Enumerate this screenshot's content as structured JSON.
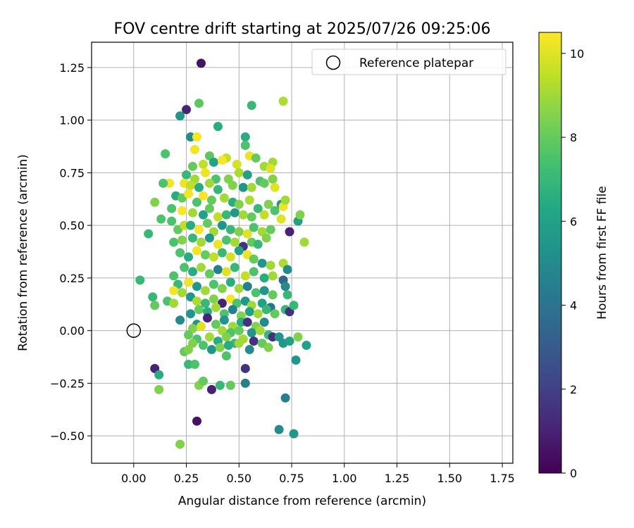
{
  "chart_data": {
    "type": "scatter",
    "title": "FOV centre drift starting at 2025/07/26 09:25:06",
    "xlabel": "Angular distance from reference (arcmin)",
    "ylabel": "Rotation from reference (arcmin)",
    "xlim": [
      -0.2,
      1.8
    ],
    "ylim": [
      -0.63,
      1.37
    ],
    "x_ticks": [
      "0.00",
      "0.25",
      "0.50",
      "0.75",
      "1.00",
      "1.25",
      "1.50",
      "1.75"
    ],
    "x_tick_values": [
      0,
      0.25,
      0.5,
      0.75,
      1.0,
      1.25,
      1.5,
      1.75
    ],
    "y_ticks": [
      "−0.50",
      "−0.25",
      "0.00",
      "0.25",
      "0.50",
      "0.75",
      "1.00",
      "1.25"
    ],
    "y_tick_values": [
      -0.5,
      -0.25,
      0,
      0.25,
      0.5,
      0.75,
      1.0,
      1.25
    ],
    "grid": true,
    "legend": {
      "placement": "upper right",
      "entries": [
        "Reference platepar"
      ]
    },
    "reference_point": {
      "name": "Reference platepar",
      "x": 0.0,
      "y": 0.0
    },
    "colorbar": {
      "label": "Hours from first FF file",
      "colormap": "viridis",
      "range": [
        0,
        10.5
      ],
      "ticks": [
        "0",
        "2",
        "4",
        "6",
        "8",
        "10"
      ],
      "tick_values": [
        0,
        2,
        4,
        6,
        8,
        10
      ]
    },
    "points": [
      [
        0.32,
        1.27,
        0.5
      ],
      [
        0.25,
        1.05,
        1.0
      ],
      [
        0.22,
        1.02,
        5.5
      ],
      [
        0.31,
        1.08,
        7.8
      ],
      [
        0.71,
        1.09,
        9.2
      ],
      [
        0.56,
        1.07,
        7.0
      ],
      [
        0.4,
        0.97,
        6.5
      ],
      [
        0.53,
        0.92,
        6.5
      ],
      [
        0.27,
        0.92,
        5.0
      ],
      [
        0.3,
        0.92,
        10.4
      ],
      [
        0.53,
        0.88,
        7.5
      ],
      [
        0.15,
        0.84,
        7.5
      ],
      [
        0.29,
        0.86,
        10.3
      ],
      [
        0.36,
        0.83,
        7.8
      ],
      [
        0.44,
        0.82,
        9.5
      ],
      [
        0.55,
        0.83,
        10.2
      ],
      [
        0.58,
        0.82,
        8.0
      ],
      [
        0.66,
        0.8,
        9.0
      ],
      [
        0.28,
        0.78,
        8.0
      ],
      [
        0.33,
        0.79,
        9.5
      ],
      [
        0.38,
        0.8,
        6.0
      ],
      [
        0.42,
        0.81,
        10.4
      ],
      [
        0.49,
        0.79,
        9.8
      ],
      [
        0.62,
        0.78,
        9.0
      ],
      [
        0.65,
        0.77,
        10.0
      ],
      [
        0.25,
        0.74,
        7.0
      ],
      [
        0.29,
        0.72,
        9.0
      ],
      [
        0.34,
        0.75,
        10.2
      ],
      [
        0.39,
        0.72,
        7.5
      ],
      [
        0.45,
        0.72,
        8.5
      ],
      [
        0.5,
        0.75,
        9.2
      ],
      [
        0.54,
        0.74,
        6.0
      ],
      [
        0.6,
        0.71,
        7.5
      ],
      [
        0.66,
        0.72,
        8.5
      ],
      [
        0.17,
        0.7,
        10.3
      ],
      [
        0.14,
        0.7,
        7.5
      ],
      [
        0.24,
        0.7,
        10.2
      ],
      [
        0.27,
        0.69,
        9.5
      ],
      [
        0.31,
        0.68,
        6.5
      ],
      [
        0.36,
        0.7,
        9.0
      ],
      [
        0.4,
        0.67,
        7.0
      ],
      [
        0.47,
        0.69,
        8.5
      ],
      [
        0.52,
        0.68,
        5.5
      ],
      [
        0.56,
        0.68,
        9.0
      ],
      [
        0.62,
        0.7,
        8.0
      ],
      [
        0.67,
        0.68,
        10.0
      ],
      [
        0.2,
        0.64,
        6.5
      ],
      [
        0.23,
        0.63,
        8.0
      ],
      [
        0.26,
        0.65,
        10.3
      ],
      [
        0.3,
        0.61,
        7.5
      ],
      [
        0.33,
        0.64,
        10.4
      ],
      [
        0.37,
        0.62,
        8.0
      ],
      [
        0.43,
        0.63,
        9.0
      ],
      [
        0.47,
        0.61,
        6.5
      ],
      [
        0.5,
        0.6,
        8.5
      ],
      [
        0.55,
        0.62,
        9.2
      ],
      [
        0.59,
        0.58,
        7.0
      ],
      [
        0.64,
        0.6,
        8.5
      ],
      [
        0.7,
        0.6,
        5.5
      ],
      [
        0.71,
        0.59,
        10.2
      ],
      [
        0.72,
        0.62,
        9.0
      ],
      [
        0.1,
        0.61,
        8.5
      ],
      [
        0.18,
        0.58,
        7.5
      ],
      [
        0.23,
        0.57,
        10.4
      ],
      [
        0.28,
        0.56,
        9.0
      ],
      [
        0.33,
        0.55,
        6.0
      ],
      [
        0.36,
        0.58,
        8.0
      ],
      [
        0.4,
        0.54,
        9.5
      ],
      [
        0.44,
        0.55,
        7.0
      ],
      [
        0.48,
        0.56,
        5.5
      ],
      [
        0.52,
        0.55,
        9.0
      ],
      [
        0.56,
        0.54,
        8.0
      ],
      [
        0.62,
        0.55,
        9.5
      ],
      [
        0.67,
        0.57,
        7.5
      ],
      [
        0.7,
        0.53,
        10.0
      ],
      [
        0.78,
        0.52,
        6.0
      ],
      [
        0.79,
        0.55,
        8.5
      ],
      [
        0.13,
        0.53,
        7.5
      ],
      [
        0.18,
        0.52,
        7.5
      ],
      [
        0.21,
        0.48,
        8.0
      ],
      [
        0.24,
        0.5,
        9.5
      ],
      [
        0.27,
        0.5,
        6.5
      ],
      [
        0.31,
        0.48,
        10.4
      ],
      [
        0.35,
        0.51,
        8.0
      ],
      [
        0.38,
        0.47,
        9.0
      ],
      [
        0.42,
        0.5,
        5.5
      ],
      [
        0.46,
        0.48,
        7.0
      ],
      [
        0.5,
        0.47,
        8.5
      ],
      [
        0.54,
        0.46,
        10.0
      ],
      [
        0.57,
        0.49,
        7.5
      ],
      [
        0.61,
        0.47,
        9.0
      ],
      [
        0.65,
        0.48,
        8.0
      ],
      [
        0.74,
        0.47,
        1.0
      ],
      [
        0.07,
        0.46,
        7.0
      ],
      [
        0.19,
        0.42,
        7.5
      ],
      [
        0.23,
        0.43,
        8.5
      ],
      [
        0.28,
        0.44,
        7.0
      ],
      [
        0.32,
        0.42,
        9.0
      ],
      [
        0.36,
        0.44,
        5.5
      ],
      [
        0.4,
        0.41,
        10.2
      ],
      [
        0.44,
        0.43,
        7.5
      ],
      [
        0.48,
        0.42,
        9.0
      ],
      [
        0.52,
        0.4,
        1.5
      ],
      [
        0.56,
        0.42,
        8.0
      ],
      [
        0.59,
        0.41,
        7.0
      ],
      [
        0.63,
        0.44,
        8.5
      ],
      [
        0.81,
        0.42,
        9.0
      ],
      [
        0.22,
        0.37,
        7.5
      ],
      [
        0.26,
        0.35,
        6.5
      ],
      [
        0.3,
        0.38,
        10.3
      ],
      [
        0.34,
        0.36,
        8.0
      ],
      [
        0.38,
        0.35,
        9.5
      ],
      [
        0.42,
        0.37,
        7.0
      ],
      [
        0.46,
        0.35,
        9.8
      ],
      [
        0.5,
        0.38,
        6.0
      ],
      [
        0.54,
        0.36,
        10.2
      ],
      [
        0.57,
        0.34,
        8.0
      ],
      [
        0.61,
        0.32,
        5.5
      ],
      [
        0.65,
        0.31,
        9.0
      ],
      [
        0.71,
        0.32,
        9.2
      ],
      [
        0.73,
        0.29,
        5.0
      ],
      [
        0.24,
        0.3,
        7.5
      ],
      [
        0.28,
        0.28,
        6.5
      ],
      [
        0.32,
        0.3,
        9.0
      ],
      [
        0.36,
        0.27,
        8.0
      ],
      [
        0.4,
        0.29,
        4.5
      ],
      [
        0.44,
        0.28,
        10.0
      ],
      [
        0.48,
        0.3,
        7.0
      ],
      [
        0.53,
        0.26,
        9.5
      ],
      [
        0.57,
        0.28,
        7.5
      ],
      [
        0.62,
        0.25,
        6.5
      ],
      [
        0.66,
        0.26,
        9.0
      ],
      [
        0.71,
        0.24,
        3.5
      ],
      [
        0.03,
        0.24,
        7.0
      ],
      [
        0.19,
        0.26,
        7.5
      ],
      [
        0.21,
        0.22,
        7.0
      ],
      [
        0.26,
        0.23,
        10.3
      ],
      [
        0.3,
        0.21,
        5.5
      ],
      [
        0.34,
        0.19,
        9.0
      ],
      [
        0.38,
        0.22,
        7.5
      ],
      [
        0.42,
        0.2,
        8.5
      ],
      [
        0.46,
        0.23,
        6.5
      ],
      [
        0.5,
        0.2,
        9.0
      ],
      [
        0.54,
        0.21,
        4.5
      ],
      [
        0.58,
        0.18,
        7.5
      ],
      [
        0.62,
        0.19,
        5.5
      ],
      [
        0.66,
        0.17,
        8.0
      ],
      [
        0.72,
        0.21,
        5.0
      ],
      [
        0.73,
        0.17,
        7.0
      ],
      [
        0.09,
        0.16,
        7.0
      ],
      [
        0.19,
        0.19,
        10.3
      ],
      [
        0.23,
        0.18,
        9.0
      ],
      [
        0.27,
        0.16,
        5.5
      ],
      [
        0.3,
        0.14,
        9.2
      ],
      [
        0.34,
        0.13,
        7.0
      ],
      [
        0.38,
        0.15,
        8.5
      ],
      [
        0.42,
        0.13,
        1.0
      ],
      [
        0.46,
        0.15,
        10.4
      ],
      [
        0.49,
        0.13,
        7.5
      ],
      [
        0.53,
        0.14,
        5.5
      ],
      [
        0.56,
        0.12,
        9.0
      ],
      [
        0.61,
        0.13,
        6.0
      ],
      [
        0.65,
        0.11,
        4.0
      ],
      [
        0.72,
        0.1,
        7.0
      ],
      [
        0.74,
        0.09,
        1.5
      ],
      [
        0.76,
        0.12,
        7.0
      ],
      [
        0.1,
        0.12,
        8.0
      ],
      [
        0.16,
        0.14,
        7.5
      ],
      [
        0.19,
        0.13,
        9.0
      ],
      [
        0.27,
        0.08,
        5.5
      ],
      [
        0.31,
        0.1,
        8.0
      ],
      [
        0.35,
        0.09,
        6.5
      ],
      [
        0.39,
        0.11,
        9.0
      ],
      [
        0.43,
        0.08,
        7.5
      ],
      [
        0.47,
        0.1,
        4.5
      ],
      [
        0.51,
        0.07,
        8.5
      ],
      [
        0.55,
        0.09,
        6.0
      ],
      [
        0.59,
        0.08,
        9.0
      ],
      [
        0.63,
        0.1,
        7.0
      ],
      [
        0.67,
        0.08,
        8.0
      ],
      [
        0.22,
        0.05,
        5.0
      ],
      [
        0.3,
        0.03,
        5.5
      ],
      [
        0.35,
        0.06,
        1.0
      ],
      [
        0.39,
        0.03,
        8.0
      ],
      [
        0.43,
        0.05,
        5.5
      ],
      [
        0.47,
        0.02,
        9.0
      ],
      [
        0.51,
        0.04,
        6.5
      ],
      [
        0.54,
        0.04,
        1.5
      ],
      [
        0.58,
        0.02,
        8.5
      ],
      [
        0.62,
        0.04,
        5.0
      ],
      [
        0.28,
        0.01,
        8.5
      ],
      [
        0.32,
        0.02,
        10.0
      ],
      [
        0.42,
        0.0,
        9.0
      ],
      [
        0.46,
        -0.01,
        7.5
      ],
      [
        0.5,
        0.0,
        8.0
      ],
      [
        0.56,
        -0.01,
        5.5
      ],
      [
        0.6,
        0.0,
        9.0
      ],
      [
        0.64,
        -0.02,
        7.0
      ],
      [
        0.26,
        -0.02,
        8.0
      ],
      [
        0.3,
        -0.04,
        7.5
      ],
      [
        0.36,
        -0.03,
        9.0
      ],
      [
        0.4,
        -0.05,
        6.5
      ],
      [
        0.44,
        -0.03,
        8.5
      ],
      [
        0.48,
        -0.06,
        7.0
      ],
      [
        0.52,
        -0.04,
        9.0
      ],
      [
        0.57,
        -0.05,
        1.5
      ],
      [
        0.61,
        -0.06,
        8.0
      ],
      [
        0.66,
        -0.03,
        1.5
      ],
      [
        0.69,
        -0.03,
        5.5
      ],
      [
        0.71,
        -0.06,
        5.5
      ],
      [
        0.74,
        -0.05,
        6.0
      ],
      [
        0.78,
        -0.03,
        8.5
      ],
      [
        0.82,
        -0.07,
        6.0
      ],
      [
        0.28,
        -0.06,
        8.5
      ],
      [
        0.33,
        -0.07,
        7.5
      ],
      [
        0.37,
        -0.09,
        5.5
      ],
      [
        0.41,
        -0.08,
        8.5
      ],
      [
        0.45,
        -0.07,
        6.5
      ],
      [
        0.5,
        -0.06,
        9.0
      ],
      [
        0.55,
        -0.09,
        5.0
      ],
      [
        0.64,
        -0.08,
        8.5
      ],
      [
        0.24,
        -0.1,
        8.0
      ],
      [
        0.26,
        -0.09,
        8.5
      ],
      [
        0.44,
        -0.12,
        7.5
      ],
      [
        0.77,
        -0.14,
        5.5
      ],
      [
        0.1,
        -0.18,
        1.0
      ],
      [
        0.12,
        -0.21,
        6.5
      ],
      [
        0.26,
        -0.16,
        7.0
      ],
      [
        0.29,
        -0.16,
        7.5
      ],
      [
        0.53,
        -0.18,
        1.5
      ],
      [
        0.31,
        -0.26,
        8.5
      ],
      [
        0.33,
        -0.24,
        8.0
      ],
      [
        0.37,
        -0.28,
        1.0
      ],
      [
        0.41,
        -0.26,
        7.0
      ],
      [
        0.46,
        -0.26,
        8.0
      ],
      [
        0.53,
        -0.25,
        4.5
      ],
      [
        0.12,
        -0.28,
        8.5
      ],
      [
        0.72,
        -0.32,
        4.5
      ],
      [
        0.3,
        -0.43,
        0.5
      ],
      [
        0.69,
        -0.47,
        5.0
      ],
      [
        0.76,
        -0.49,
        5.5
      ],
      [
        0.22,
        -0.54,
        8.5
      ]
    ]
  }
}
